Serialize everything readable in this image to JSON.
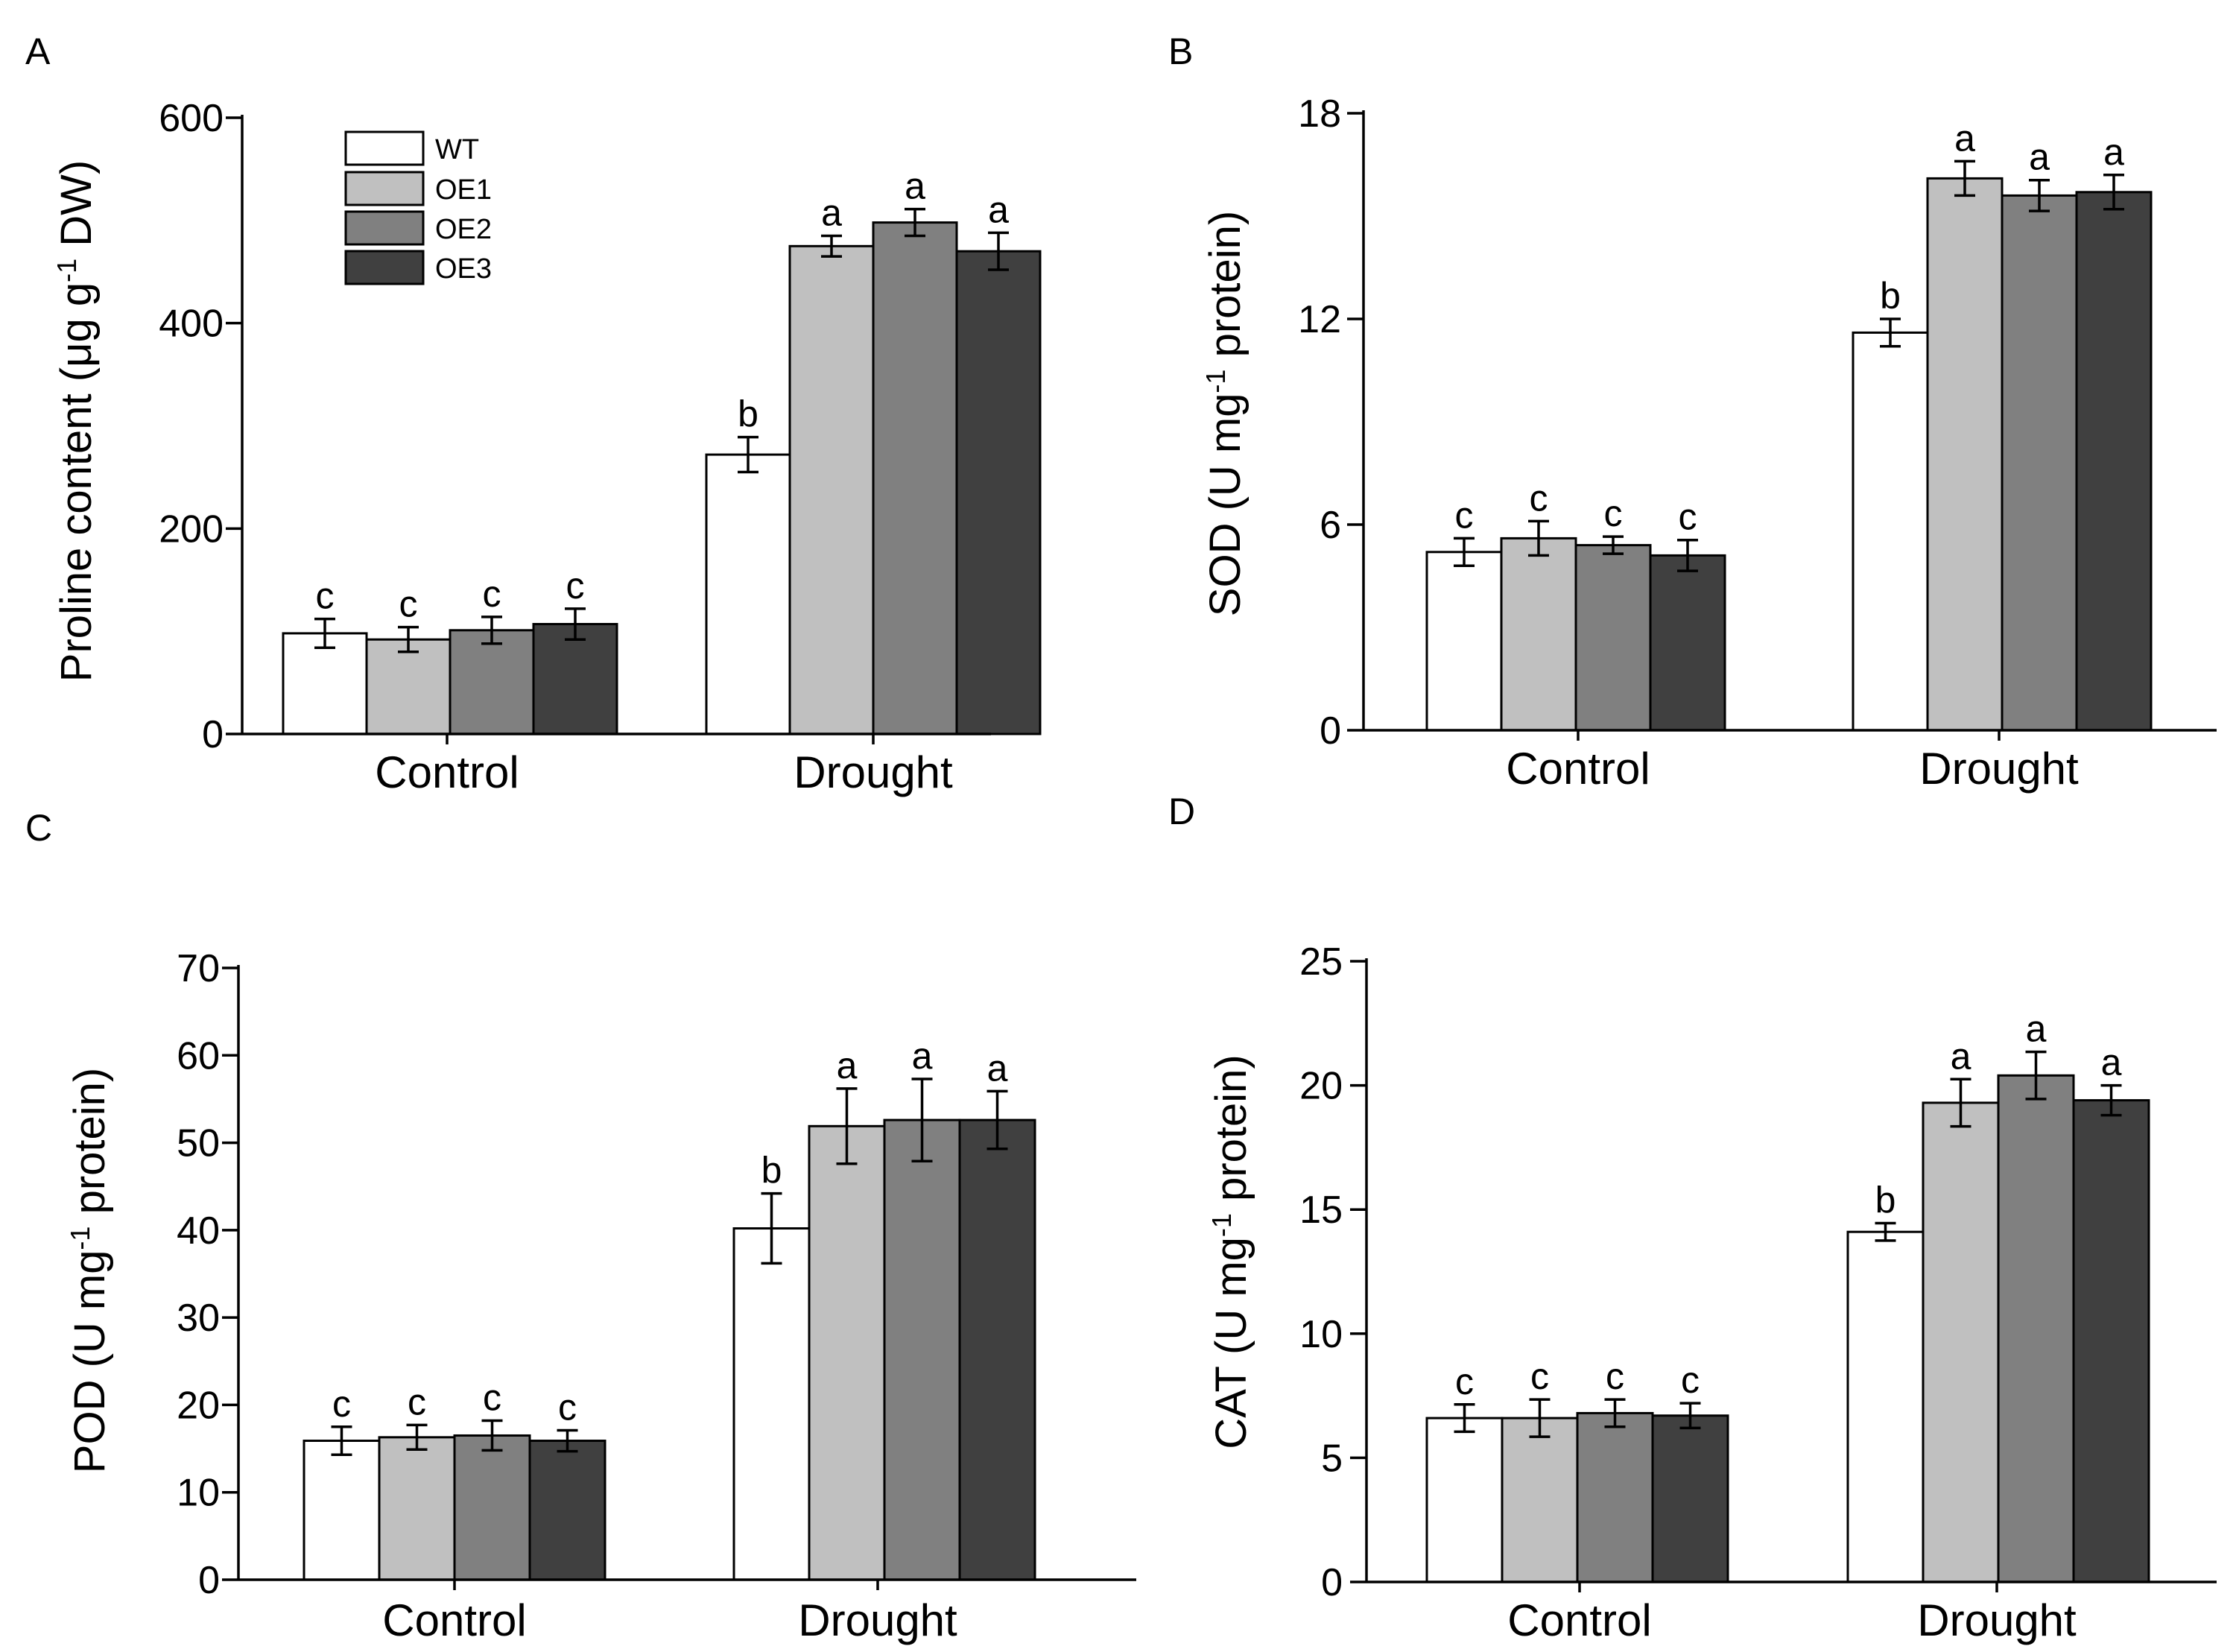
{
  "colors": {
    "WT": "#ffffff",
    "OE1": "#c0c0c0",
    "OE2": "#808080",
    "OE3": "#404040"
  },
  "legend": {
    "entries": [
      "WT",
      "OE1",
      "OE2",
      "OE3"
    ]
  },
  "chart_data": [
    {
      "panel": "A",
      "type": "bar",
      "categories": [
        "Control",
        "Drought"
      ],
      "ylabel_main": "Proline content (μg g",
      "ylabel_sup": "-1",
      "ylabel_end": " DW)",
      "ylim": [
        0,
        600
      ],
      "yticks": [
        0,
        200,
        400,
        600
      ],
      "series": [
        {
          "name": "WT",
          "values": [
            98,
            272
          ],
          "errors": [
            14,
            17
          ],
          "letters": [
            "c",
            "b"
          ]
        },
        {
          "name": "OE1",
          "values": [
            92,
            475
          ],
          "errors": [
            12,
            10
          ],
          "letters": [
            "c",
            "a"
          ]
        },
        {
          "name": "OE2",
          "values": [
            101,
            498
          ],
          "errors": [
            13,
            13
          ],
          "letters": [
            "c",
            "a"
          ]
        },
        {
          "name": "OE3",
          "values": [
            107,
            470
          ],
          "errors": [
            15,
            18
          ],
          "letters": [
            "c",
            "a"
          ]
        }
      ]
    },
    {
      "panel": "B",
      "type": "bar",
      "categories": [
        "Control",
        "Drought"
      ],
      "ylabel_main": "SOD (U mg",
      "ylabel_sup": "-1",
      "ylabel_end": " protein)",
      "ylim": [
        0,
        18
      ],
      "yticks": [
        0,
        6,
        12,
        18
      ],
      "series": [
        {
          "name": "WT",
          "values": [
            5.2,
            11.6
          ],
          "errors": [
            0.4,
            0.4
          ],
          "letters": [
            "c",
            "b"
          ]
        },
        {
          "name": "OE1",
          "values": [
            5.6,
            16.1
          ],
          "errors": [
            0.5,
            0.5
          ],
          "letters": [
            "c",
            "a"
          ]
        },
        {
          "name": "OE2",
          "values": [
            5.4,
            15.6
          ],
          "errors": [
            0.25,
            0.45
          ],
          "letters": [
            "c",
            "a"
          ]
        },
        {
          "name": "OE3",
          "values": [
            5.1,
            15.7
          ],
          "errors": [
            0.45,
            0.5
          ],
          "letters": [
            "c",
            "a"
          ]
        }
      ]
    },
    {
      "panel": "C",
      "type": "bar",
      "categories": [
        "Control",
        "Drought"
      ],
      "ylabel_main": "POD (U mg",
      "ylabel_sup": "-1",
      "ylabel_end": " protein)",
      "ylim": [
        0,
        70
      ],
      "yticks": [
        0,
        10,
        20,
        30,
        40,
        50,
        60,
        70
      ],
      "series": [
        {
          "name": "WT",
          "values": [
            15.9,
            40.2
          ],
          "errors": [
            1.6,
            4.0
          ],
          "letters": [
            "c",
            "b"
          ]
        },
        {
          "name": "OE1",
          "values": [
            16.3,
            51.9
          ],
          "errors": [
            1.4,
            4.3
          ],
          "letters": [
            "c",
            "a"
          ]
        },
        {
          "name": "OE2",
          "values": [
            16.5,
            52.6
          ],
          "errors": [
            1.7,
            4.7
          ],
          "letters": [
            "c",
            "a"
          ]
        },
        {
          "name": "OE3",
          "values": [
            15.9,
            52.6
          ],
          "errors": [
            1.2,
            3.3
          ],
          "letters": [
            "c",
            "a"
          ]
        }
      ]
    },
    {
      "panel": "D",
      "type": "bar",
      "categories": [
        "Control",
        "Drought"
      ],
      "ylabel_main": "CAT (U mg",
      "ylabel_sup": "-1",
      "ylabel_end": " protein)",
      "ylim": [
        0,
        25
      ],
      "yticks": [
        0,
        5,
        10,
        15,
        20,
        25
      ],
      "series": [
        {
          "name": "WT",
          "values": [
            6.6,
            14.1
          ],
          "errors": [
            0.55,
            0.35
          ],
          "letters": [
            "c",
            "b"
          ]
        },
        {
          "name": "OE1",
          "values": [
            6.6,
            19.3
          ],
          "errors": [
            0.75,
            0.95
          ],
          "letters": [
            "c",
            "a"
          ]
        },
        {
          "name": "OE2",
          "values": [
            6.8,
            20.4
          ],
          "errors": [
            0.55,
            0.95
          ],
          "letters": [
            "c",
            "a"
          ]
        },
        {
          "name": "OE3",
          "values": [
            6.7,
            19.4
          ],
          "errors": [
            0.5,
            0.6
          ],
          "letters": [
            "c",
            "a"
          ]
        }
      ]
    }
  ]
}
